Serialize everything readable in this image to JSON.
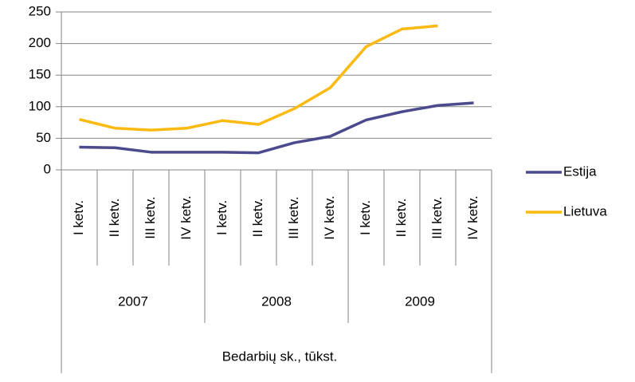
{
  "chart_data": {
    "type": "line",
    "categories": [
      "I ketv.",
      "II ketv.",
      "III ketv.",
      "IV ketv.",
      "I ketv.",
      "II ketv.",
      "III ketv.",
      "IV ketv.",
      "I ketv.",
      "II ketv.",
      "III ketv.",
      "IV ketv."
    ],
    "category_groups": [
      "2007",
      "2008",
      "2009"
    ],
    "x_label": "Bedarbių sk., tūkst.",
    "series": [
      {
        "name": "Estija",
        "color": "#4b4a8c",
        "values": [
          36,
          35,
          28,
          28,
          28,
          27,
          43,
          53,
          79,
          92,
          102,
          106
        ]
      },
      {
        "name": "Lietuva",
        "color": "#fbba12",
        "values": [
          80,
          66,
          63,
          66,
          78,
          72,
          97,
          130,
          195,
          223,
          228,
          null
        ]
      }
    ],
    "ylim": [
      0,
      250
    ],
    "yticks": [
      0,
      50,
      100,
      150,
      200,
      250
    ],
    "grid": true,
    "legend": "right"
  }
}
